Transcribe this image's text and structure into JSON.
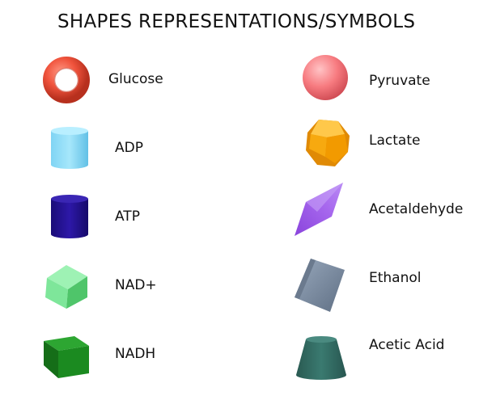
{
  "title": "SHAPES REPRESENTATIONS/SYMBOLS",
  "legend": {
    "left": [
      {
        "label": "Glucose",
        "shape": "torus-icon",
        "color": "#f0533c"
      },
      {
        "label": "ADP",
        "shape": "cylinder-icon",
        "color": "#8fdcf7"
      },
      {
        "label": "ATP",
        "shape": "cylinder-icon",
        "color": "#241396"
      },
      {
        "label": "NAD+",
        "shape": "cube-icon",
        "color": "#7ee69a"
      },
      {
        "label": "NADH",
        "shape": "cube-icon",
        "color": "#1b8a20"
      }
    ],
    "right": [
      {
        "label": "Pyruvate",
        "shape": "sphere-icon",
        "color": "#f77b80"
      },
      {
        "label": "Lactate",
        "shape": "polyhedron-icon",
        "color": "#f7a90f"
      },
      {
        "label": "Acetaldehyde",
        "shape": "diamond-icon",
        "color": "#9a58e6"
      },
      {
        "label": "Ethanol",
        "shape": "rotated-cube-icon",
        "color": "#7d8ea4"
      },
      {
        "label": "Acetic Acid",
        "shape": "frustum-icon",
        "color": "#33685f"
      }
    ]
  }
}
